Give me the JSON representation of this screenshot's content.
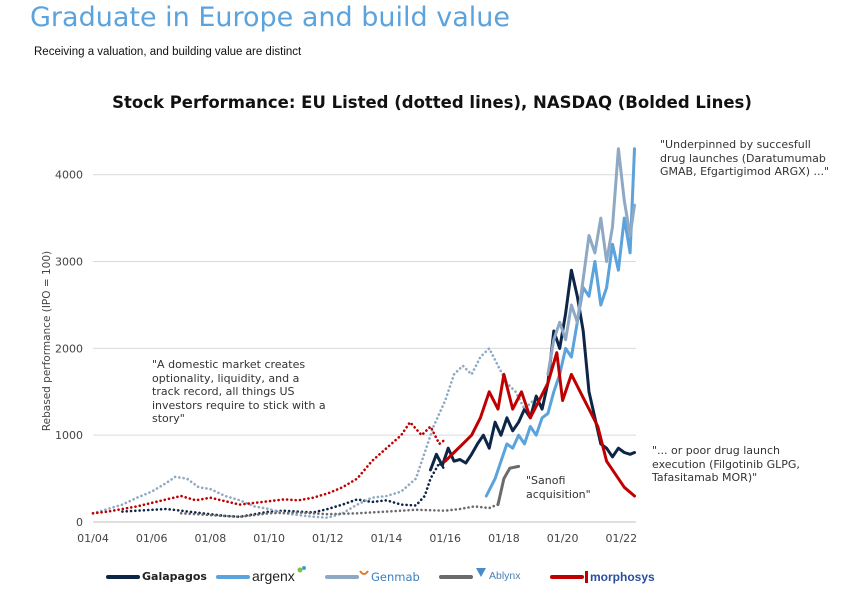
{
  "header": {
    "title": "Graduate in Europe and build value",
    "subtitle": "Receiving a valuation, and building value are distinct"
  },
  "annotations": {
    "top_right": "\"Underpinned by succesfull drug launches (Daratumumab GMAB, Efgartigimod ARGX) ...\"",
    "left": "\"A domestic market creates optionality, liquidity, and a track record, all things US investors require to stick with a story\"",
    "bottom_right": "\"... or poor drug launch execution (Filgotinib GLPG, Tafasitamab MOR)\"",
    "sanofi": "\"Sanofi acquisition\""
  },
  "chart_data": {
    "type": "line",
    "title": "Stock Performance: EU Listed (dotted lines), NASDAQ (Bolded Lines)",
    "xlabel": "",
    "ylabel": "Rebased performance (IPO = 100)",
    "x_ticks": [
      "01/04",
      "01/06",
      "01/08",
      "01/10",
      "01/12",
      "01/14",
      "01/16",
      "01/18",
      "01/20",
      "01/22"
    ],
    "y_ticks": [
      0,
      1000,
      2000,
      3000,
      4000
    ],
    "xlim": [
      2004.0,
      2022.5
    ],
    "ylim": [
      0,
      4400
    ],
    "grid": "horizontal",
    "legend_position": "bottom",
    "colors": {
      "galapagos": "#0d2546",
      "argenx": "#5ba3dd",
      "genmab": "#8fa9c4",
      "ablynx": "#6b6b6b",
      "morphosys": "#c00000"
    },
    "series": [
      {
        "name": "Galapagos",
        "key": "galapagos",
        "listing": "EU",
        "style": "dotted",
        "points": [
          [
            2005.0,
            120
          ],
          [
            2005.5,
            130
          ],
          [
            2006.0,
            140
          ],
          [
            2006.5,
            150
          ],
          [
            2007.0,
            130
          ],
          [
            2007.5,
            110
          ],
          [
            2008.0,
            90
          ],
          [
            2008.5,
            70
          ],
          [
            2009.0,
            60
          ],
          [
            2009.5,
            90
          ],
          [
            2010.0,
            120
          ],
          [
            2010.5,
            130
          ],
          [
            2011.0,
            120
          ],
          [
            2011.5,
            110
          ],
          [
            2012.0,
            150
          ],
          [
            2012.5,
            200
          ],
          [
            2013.0,
            260
          ],
          [
            2013.5,
            230
          ],
          [
            2014.0,
            250
          ],
          [
            2014.5,
            200
          ],
          [
            2015.0,
            190
          ],
          [
            2015.3,
            300
          ],
          [
            2015.5,
            500
          ],
          [
            2015.8,
            680
          ],
          [
            2016.0,
            600
          ]
        ]
      },
      {
        "name": "Galapagos",
        "key": "galapagos",
        "listing": "NASDAQ",
        "style": "solid",
        "points": [
          [
            2015.5,
            600
          ],
          [
            2015.7,
            780
          ],
          [
            2015.9,
            650
          ],
          [
            2016.1,
            850
          ],
          [
            2016.3,
            700
          ],
          [
            2016.5,
            720
          ],
          [
            2016.7,
            680
          ],
          [
            2016.9,
            780
          ],
          [
            2017.1,
            900
          ],
          [
            2017.3,
            1000
          ],
          [
            2017.5,
            850
          ],
          [
            2017.7,
            1150
          ],
          [
            2017.9,
            1000
          ],
          [
            2018.1,
            1200
          ],
          [
            2018.3,
            1050
          ],
          [
            2018.5,
            1150
          ],
          [
            2018.7,
            1300
          ],
          [
            2018.9,
            1200
          ],
          [
            2019.1,
            1450
          ],
          [
            2019.3,
            1300
          ],
          [
            2019.5,
            1600
          ],
          [
            2019.7,
            2200
          ],
          [
            2019.9,
            2000
          ],
          [
            2020.1,
            2400
          ],
          [
            2020.3,
            2900
          ],
          [
            2020.5,
            2600
          ],
          [
            2020.7,
            2200
          ],
          [
            2020.9,
            1500
          ],
          [
            2021.1,
            1200
          ],
          [
            2021.3,
            900
          ],
          [
            2021.5,
            850
          ],
          [
            2021.7,
            750
          ],
          [
            2021.9,
            850
          ],
          [
            2022.1,
            800
          ],
          [
            2022.3,
            780
          ],
          [
            2022.45,
            800
          ]
        ]
      },
      {
        "name": "argenx",
        "key": "argenx",
        "listing": "NASDAQ",
        "style": "solid",
        "points": [
          [
            2017.4,
            300
          ],
          [
            2017.7,
            500
          ],
          [
            2017.9,
            700
          ],
          [
            2018.1,
            900
          ],
          [
            2018.3,
            850
          ],
          [
            2018.5,
            1000
          ],
          [
            2018.7,
            900
          ],
          [
            2018.9,
            1100
          ],
          [
            2019.1,
            1000
          ],
          [
            2019.3,
            1200
          ],
          [
            2019.5,
            1250
          ],
          [
            2019.7,
            1500
          ],
          [
            2019.9,
            1700
          ],
          [
            2020.1,
            2000
          ],
          [
            2020.3,
            1900
          ],
          [
            2020.5,
            2300
          ],
          [
            2020.7,
            2700
          ],
          [
            2020.9,
            2600
          ],
          [
            2021.1,
            3000
          ],
          [
            2021.3,
            2500
          ],
          [
            2021.5,
            2700
          ],
          [
            2021.7,
            3200
          ],
          [
            2021.9,
            2900
          ],
          [
            2022.1,
            3500
          ],
          [
            2022.3,
            3100
          ],
          [
            2022.45,
            4300
          ]
        ]
      },
      {
        "name": "Genmab",
        "key": "genmab",
        "listing": "EU",
        "style": "dotted",
        "points": [
          [
            2004.0,
            100
          ],
          [
            2004.5,
            150
          ],
          [
            2005.0,
            200
          ],
          [
            2005.5,
            280
          ],
          [
            2006.0,
            350
          ],
          [
            2006.5,
            450
          ],
          [
            2006.8,
            520
          ],
          [
            2007.2,
            500
          ],
          [
            2007.6,
            400
          ],
          [
            2008.0,
            380
          ],
          [
            2008.5,
            300
          ],
          [
            2009.0,
            250
          ],
          [
            2009.5,
            180
          ],
          [
            2010.0,
            150
          ],
          [
            2010.5,
            100
          ],
          [
            2011.0,
            80
          ],
          [
            2011.5,
            60
          ],
          [
            2012.0,
            50
          ],
          [
            2012.5,
            100
          ],
          [
            2013.0,
            200
          ],
          [
            2013.5,
            280
          ],
          [
            2014.0,
            300
          ],
          [
            2014.5,
            350
          ],
          [
            2015.0,
            500
          ],
          [
            2015.3,
            800
          ],
          [
            2015.6,
            1100
          ],
          [
            2016.0,
            1400
          ],
          [
            2016.3,
            1700
          ],
          [
            2016.6,
            1800
          ],
          [
            2016.9,
            1700
          ],
          [
            2017.2,
            1900
          ],
          [
            2017.5,
            2000
          ],
          [
            2017.8,
            1800
          ],
          [
            2018.1,
            1600
          ],
          [
            2018.4,
            1500
          ],
          [
            2018.7,
            1300
          ],
          [
            2019.0,
            1400
          ]
        ]
      },
      {
        "name": "Genmab",
        "key": "genmab",
        "listing": "NASDAQ",
        "style": "solid",
        "points": [
          [
            2019.5,
            1700
          ],
          [
            2019.7,
            2100
          ],
          [
            2019.9,
            2300
          ],
          [
            2020.1,
            2100
          ],
          [
            2020.3,
            2500
          ],
          [
            2020.5,
            2300
          ],
          [
            2020.7,
            2800
          ],
          [
            2020.9,
            3300
          ],
          [
            2021.1,
            3100
          ],
          [
            2021.3,
            3500
          ],
          [
            2021.5,
            3000
          ],
          [
            2021.7,
            3400
          ],
          [
            2021.9,
            4300
          ],
          [
            2022.1,
            3700
          ],
          [
            2022.3,
            3300
          ],
          [
            2022.45,
            3650
          ]
        ]
      },
      {
        "name": "Ablynx",
        "key": "ablynx",
        "listing": "EU",
        "style": "dotted",
        "points": [
          [
            2007.0,
            100
          ],
          [
            2008.0,
            80
          ],
          [
            2009.0,
            60
          ],
          [
            2010.0,
            100
          ],
          [
            2011.0,
            110
          ],
          [
            2012.0,
            90
          ],
          [
            2013.0,
            100
          ],
          [
            2014.0,
            120
          ],
          [
            2015.0,
            140
          ],
          [
            2016.0,
            130
          ],
          [
            2016.5,
            150
          ],
          [
            2017.0,
            180
          ],
          [
            2017.5,
            160
          ],
          [
            2017.9,
            220
          ]
        ]
      },
      {
        "name": "Ablynx",
        "key": "ablynx",
        "listing": "NASDAQ",
        "style": "solid",
        "points": [
          [
            2017.8,
            200
          ],
          [
            2018.0,
            500
          ],
          [
            2018.2,
            620
          ],
          [
            2018.5,
            640
          ]
        ]
      },
      {
        "name": "MorphoSys",
        "key": "morphosys",
        "listing": "EU",
        "style": "dotted",
        "points": [
          [
            2004.0,
            100
          ],
          [
            2004.5,
            120
          ],
          [
            2005.0,
            150
          ],
          [
            2005.5,
            180
          ],
          [
            2006.0,
            220
          ],
          [
            2006.5,
            260
          ],
          [
            2007.0,
            300
          ],
          [
            2007.5,
            250
          ],
          [
            2008.0,
            280
          ],
          [
            2008.5,
            240
          ],
          [
            2009.0,
            200
          ],
          [
            2009.5,
            220
          ],
          [
            2010.0,
            240
          ],
          [
            2010.5,
            260
          ],
          [
            2011.0,
            250
          ],
          [
            2011.5,
            280
          ],
          [
            2012.0,
            330
          ],
          [
            2012.5,
            400
          ],
          [
            2013.0,
            500
          ],
          [
            2013.5,
            700
          ],
          [
            2014.0,
            850
          ],
          [
            2014.5,
            1000
          ],
          [
            2014.8,
            1150
          ],
          [
            2015.2,
            1000
          ],
          [
            2015.5,
            1100
          ],
          [
            2015.8,
            900
          ],
          [
            2016.0,
            950
          ]
        ]
      },
      {
        "name": "MorphoSys",
        "key": "morphosys",
        "listing": "NASDAQ",
        "style": "solid",
        "points": [
          [
            2016.0,
            700
          ],
          [
            2016.3,
            800
          ],
          [
            2016.6,
            900
          ],
          [
            2016.9,
            1000
          ],
          [
            2017.2,
            1200
          ],
          [
            2017.5,
            1500
          ],
          [
            2017.8,
            1300
          ],
          [
            2018.0,
            1700
          ],
          [
            2018.3,
            1300
          ],
          [
            2018.6,
            1500
          ],
          [
            2018.9,
            1200
          ],
          [
            2019.2,
            1400
          ],
          [
            2019.5,
            1600
          ],
          [
            2019.8,
            1950
          ],
          [
            2020.0,
            1400
          ],
          [
            2020.3,
            1700
          ],
          [
            2020.6,
            1500
          ],
          [
            2020.9,
            1300
          ],
          [
            2021.2,
            1100
          ],
          [
            2021.5,
            700
          ],
          [
            2021.8,
            550
          ],
          [
            2022.1,
            400
          ],
          [
            2022.45,
            300
          ]
        ]
      }
    ]
  },
  "legend": [
    {
      "key": "galapagos",
      "label": "Galapagos",
      "color": "#0d2546",
      "icon": "galapagos-logo"
    },
    {
      "key": "argenx",
      "label": "argenx",
      "color": "#5ba3dd",
      "icon": "argenx-logo"
    },
    {
      "key": "genmab",
      "label": "Genmab",
      "color": "#8fa9c4",
      "icon": "genmab-logo"
    },
    {
      "key": "ablynx",
      "label": "Ablynx",
      "color": "#6b6b6b",
      "icon": "ablynx-logo"
    },
    {
      "key": "morphosys",
      "label": "morphosys",
      "color": "#c00000",
      "icon": "morphosys-logo"
    }
  ]
}
